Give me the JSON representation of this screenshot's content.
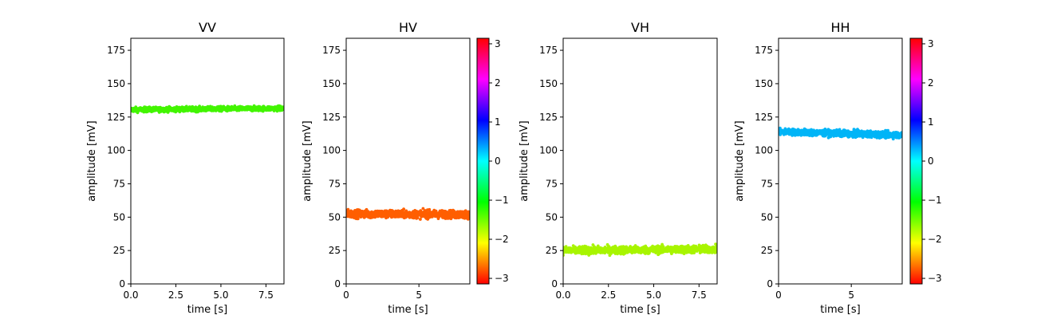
{
  "chart_data": [
    {
      "type": "scatter",
      "title": "VV",
      "xlabel": "time [s]",
      "ylabel": "amplitude [mV]",
      "xlim": [
        0,
        8.5
      ],
      "ylim": [
        0,
        184
      ],
      "xticks": [
        "0.0",
        "2.5",
        "5.0",
        "7.5"
      ],
      "xtick_values": [
        0,
        2.5,
        5,
        7.5
      ],
      "yticks": [
        "0",
        "25",
        "50",
        "75",
        "100",
        "125",
        "150",
        "175"
      ],
      "ytick_values": [
        0,
        25,
        50,
        75,
        100,
        125,
        150,
        175
      ],
      "series": [
        {
          "x_range": [
            0,
            8.5
          ],
          "y_mean": [
            130.5,
            131.5
          ],
          "y_spread": 3,
          "phase": -1.3,
          "color": "#43f500"
        }
      ],
      "colorbar": false
    },
    {
      "type": "scatter",
      "title": "HV",
      "xlabel": "time [s]",
      "ylabel": "amplitude [mV]",
      "xlim": [
        0,
        8.5
      ],
      "ylim": [
        0,
        184
      ],
      "xticks": [
        "0",
        "5"
      ],
      "xtick_values": [
        0,
        5
      ],
      "yticks": [
        "0",
        "25",
        "50",
        "75",
        "100",
        "125",
        "150",
        "175"
      ],
      "ytick_values": [
        0,
        25,
        50,
        75,
        100,
        125,
        150,
        175
      ],
      "series": [
        {
          "x_range": [
            0,
            8.5
          ],
          "y_mean": [
            52.5,
            52
          ],
          "y_spread": 5,
          "phase": -2.55,
          "color": "#ff5f00"
        }
      ],
      "colorbar": true,
      "colorbar_ticks": [
        "3",
        "2",
        "1",
        "0",
        "−1",
        "−2",
        "−3"
      ],
      "colorbar_values": [
        3,
        2,
        1,
        0,
        -1,
        -2,
        -3
      ],
      "colorbar_range": [
        -3.14159,
        3.14159
      ]
    },
    {
      "type": "scatter",
      "title": "VH",
      "xlabel": "time [s]",
      "ylabel": "amplitude [mV]",
      "xlim": [
        0,
        8.5
      ],
      "ylim": [
        0,
        184
      ],
      "xticks": [
        "0.0",
        "2.5",
        "5.0",
        "7.5"
      ],
      "xtick_values": [
        0,
        2.5,
        5,
        7.5
      ],
      "yticks": [
        "0",
        "25",
        "50",
        "75",
        "100",
        "125",
        "150",
        "175"
      ],
      "ytick_values": [
        0,
        25,
        50,
        75,
        100,
        125,
        150,
        175
      ],
      "series": [
        {
          "x_range": [
            0,
            8.5
          ],
          "y_mean": [
            25,
            26
          ],
          "y_spread": 5,
          "phase": -1.9,
          "color": "#a8f500"
        }
      ],
      "colorbar": false
    },
    {
      "type": "scatter",
      "title": "HH",
      "xlabel": "time [s]",
      "ylabel": "amplitude [mV]",
      "xlim": [
        0,
        8.5
      ],
      "ylim": [
        0,
        184
      ],
      "xticks": [
        "0",
        "5"
      ],
      "xtick_values": [
        0,
        5
      ],
      "yticks": [
        "0",
        "25",
        "50",
        "75",
        "100",
        "125",
        "150",
        "175"
      ],
      "ytick_values": [
        0,
        25,
        50,
        75,
        100,
        125,
        150,
        175
      ],
      "series": [
        {
          "x_range": [
            0,
            8.5
          ],
          "y_mean": [
            114,
            111.5
          ],
          "y_spread": 4,
          "phase": 0.45,
          "color": "#00b5f7"
        }
      ],
      "colorbar": true,
      "colorbar_ticks": [
        "3",
        "2",
        "1",
        "0",
        "−1",
        "−2",
        "−3"
      ],
      "colorbar_values": [
        3,
        2,
        1,
        0,
        -1,
        -2,
        -3
      ],
      "colorbar_range": [
        -3.14159,
        3.14159
      ]
    }
  ]
}
